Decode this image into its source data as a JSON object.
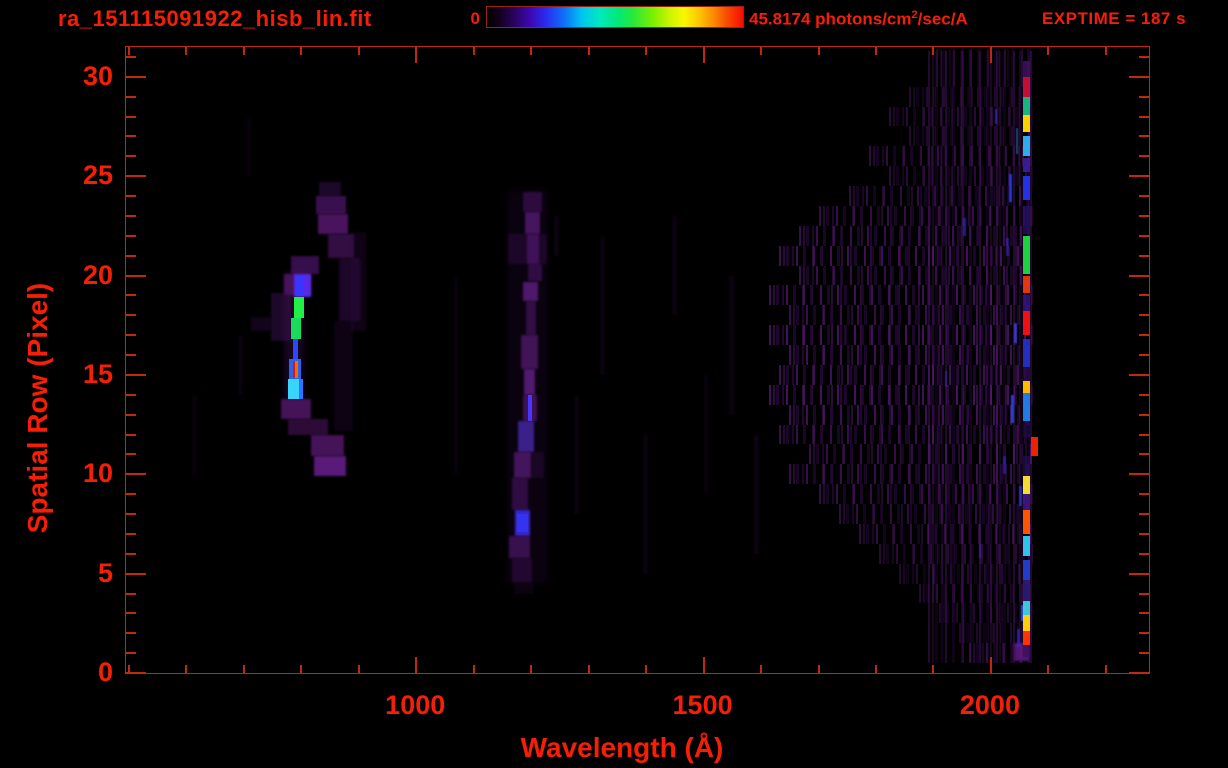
{
  "header": {
    "title": "ra_151115091922_hisb_lin.fit",
    "colorbar_min_label": "0",
    "colorbar_max_prefix": "45.8174 photons/cm",
    "colorbar_max_sup": "2",
    "colorbar_max_suffix": "/sec/A",
    "exptime_label": "EXPTIME = 187 s"
  },
  "colors": {
    "background": "#000000",
    "annotation_red": "#f71e08",
    "axis_red": "#c1290f",
    "noise_purple": "#6e1e9e"
  },
  "chart_data": {
    "type": "heatmap",
    "title": "ra_151115091922_hisb_lin.fit",
    "xlabel": "Wavelength (Å)",
    "ylabel": "Spatial Row (Pixel)",
    "xlim": [
      495,
      2275
    ],
    "ylim": [
      0,
      31.5
    ],
    "x_major_ticks": [
      1000,
      1500,
      2000
    ],
    "x_minor_range": [
      500,
      2200
    ],
    "x_minor_step": 100,
    "y_major_ticks": [
      0,
      5,
      10,
      15,
      20,
      25,
      30
    ],
    "y_minor_range": [
      0,
      31
    ],
    "y_minor_step": 1,
    "colorbar": {
      "min": 0,
      "max": 45.8174,
      "units": "photons/cm²/sec/A"
    },
    "exptime_s": 187,
    "features": {
      "blobs": [
        [
          831,
          869,
          24.0,
          24.7,
          "#3c1054",
          0.5,
          1
        ],
        [
          826,
          878,
          23.1,
          24.0,
          "#45125f",
          0.85,
          1
        ],
        [
          829,
          881,
          22.1,
          23.1,
          "#521768",
          0.9,
          1
        ],
        [
          782,
          831,
          20.1,
          21.0,
          "#45125f",
          0.8,
          1
        ],
        [
          770,
          817,
          19.0,
          20.1,
          "#521768",
          0.85,
          1
        ],
        [
          747,
          782,
          16.7,
          19.1,
          "#3c1054",
          0.5,
          1
        ],
        [
          712,
          747,
          17.2,
          17.9,
          "#360e4c",
          0.35,
          1
        ],
        [
          770,
          805,
          13.7,
          20.2,
          "#4a1468",
          0.3,
          3
        ],
        [
          765,
          817,
          12.8,
          13.8,
          "#521768",
          0.85,
          1
        ],
        [
          777,
          846,
          12.0,
          12.8,
          "#40114f",
          0.7,
          1
        ],
        [
          817,
          874,
          10.9,
          12.0,
          "#521768",
          0.85,
          1
        ],
        [
          822,
          878,
          9.9,
          10.9,
          "#5e1c80",
          0.95,
          1
        ],
        [
          846,
          891,
          20.9,
          22.1,
          "#481460",
          0.7,
          1
        ],
        [
          865,
          903,
          17.7,
          20.9,
          "#390f50",
          0.5,
          1
        ],
        [
          886,
          912,
          17.2,
          22.2,
          "#320d46",
          0.3,
          1
        ],
        [
          857,
          890,
          12.2,
          17.7,
          "#320d46",
          0.28,
          1
        ],
        [
          2040,
          2066,
          0.6,
          1.5,
          "#5a1b7a",
          0.9,
          1
        ]
      ],
      "bright_segments": [
        [
          787,
          817,
          18.9,
          20.1,
          "#5b2bf2",
          0.95,
          1
        ],
        [
          791,
          805,
          18.95,
          20.0,
          "#3a34ff",
          1,
          0
        ],
        [
          787,
          805,
          17.85,
          18.9,
          "#20ef48",
          1,
          0
        ],
        [
          782,
          800,
          16.8,
          17.85,
          "#18dc5a",
          1,
          0
        ],
        [
          785,
          794,
          15.8,
          16.8,
          "#2f46ff",
          1,
          0
        ],
        [
          779,
          800,
          14.8,
          15.8,
          "#2a62e8",
          1,
          0
        ],
        [
          789,
          795,
          14.85,
          15.7,
          "#ff6a00",
          1,
          0
        ],
        [
          786,
          789,
          14.85,
          15.7,
          "#e01414",
          1,
          0
        ],
        [
          777,
          803,
          13.8,
          14.8,
          "#38d6ff",
          1,
          0
        ],
        [
          796,
          803,
          13.8,
          14.8,
          "#2b6bff",
          0.9,
          0
        ]
      ],
      "stripe_blocks": [
        [
          1158,
          1230,
          4.5,
          24.3,
          "#45125e",
          0.15,
          3
        ],
        [
          1186,
          1218,
          23.2,
          24.2,
          "#4a1468",
          0.55,
          1
        ],
        [
          1190,
          1216,
          22.1,
          23.2,
          "#541a72",
          0.8,
          1
        ],
        [
          1160,
          1228,
          20.6,
          22.1,
          "#41125c",
          0.35,
          1
        ],
        [
          1193,
          1214,
          20.6,
          22.1,
          "#4e1669",
          0.7,
          1
        ],
        [
          1194,
          1218,
          19.7,
          20.6,
          "#4a1468",
          0.6,
          1
        ],
        [
          1186,
          1212,
          18.7,
          19.7,
          "#5a1d7c",
          0.85,
          1
        ],
        [
          1191,
          1209,
          17.0,
          18.7,
          "#4e166b",
          0.6,
          1
        ],
        [
          1182,
          1212,
          15.3,
          17.0,
          "#521a70",
          0.75,
          1
        ],
        [
          1187,
          1207,
          14.0,
          15.3,
          "#5e1e80",
          0.85,
          1
        ],
        [
          1185,
          1210,
          12.7,
          14.0,
          "#521a70",
          0.7,
          1
        ],
        [
          1195,
          1202,
          12.7,
          14.0,
          "#4636ff",
          1,
          0
        ],
        [
          1177,
          1205,
          11.1,
          12.7,
          "#4c2bb4",
          0.75,
          1
        ],
        [
          1170,
          1200,
          9.8,
          11.1,
          "#521a70",
          0.8,
          1
        ],
        [
          1200,
          1222,
          9.8,
          11.1,
          "#41125c",
          0.3,
          1
        ],
        [
          1167,
          1195,
          8.2,
          9.8,
          "#481466",
          0.6,
          1
        ],
        [
          1172,
          1198,
          6.9,
          8.2,
          "#3c2ce0",
          0.9,
          1
        ],
        [
          1176,
          1194,
          7.1,
          8.0,
          "#3434f0",
          1,
          0
        ],
        [
          1162,
          1198,
          5.8,
          6.9,
          "#4c176a",
          0.7,
          1
        ],
        [
          1166,
          1202,
          4.6,
          5.8,
          "#40115a",
          0.45,
          1
        ],
        [
          1170,
          1205,
          4.0,
          4.6,
          "#3a0f52",
          0.2,
          1
        ]
      ],
      "column_x": [
        2056,
        2068
      ],
      "column_segments": [
        [
          30.0,
          30.8,
          "#451260",
          0.8,
          0
        ],
        [
          29.0,
          30.0,
          "#cc1036",
          0.95,
          0
        ],
        [
          28.1,
          29.0,
          "#19c88c",
          0.9,
          0
        ],
        [
          27.2,
          28.1,
          "#ffd000",
          1,
          0
        ],
        [
          26.0,
          27.0,
          "#30b4f8",
          0.95,
          0
        ],
        [
          25.2,
          25.9,
          "#4020a8",
          0.85,
          0
        ],
        [
          23.8,
          25.0,
          "#2336ee",
          0.95,
          0
        ],
        [
          22.1,
          23.5,
          "#241064",
          0.8,
          0
        ],
        [
          20.1,
          22.0,
          "#1fd13f",
          1,
          0
        ],
        [
          19.1,
          20.0,
          "#ee3911",
          0.95,
          0
        ],
        [
          18.2,
          19.0,
          "#33147e",
          0.85,
          0
        ],
        [
          17.0,
          18.2,
          "#ee1111",
          1,
          0
        ],
        [
          15.4,
          16.8,
          "#2333cc",
          0.9,
          0
        ],
        [
          14.7,
          15.4,
          "#2c0d50",
          0.7,
          0
        ],
        [
          14.1,
          14.7,
          "#ffba00",
          1,
          0
        ],
        [
          12.7,
          14.1,
          "#2288f8",
          0.9,
          0
        ],
        [
          11.9,
          12.7,
          "#1e0b44",
          0.7,
          0
        ],
        [
          10.9,
          11.9,
          "#ee2200",
          1,
          14
        ],
        [
          9.9,
          10.9,
          "#201056",
          0.7,
          0
        ],
        [
          9.0,
          9.9,
          "#ffe833",
          0.95,
          0
        ],
        [
          8.2,
          9.0,
          "#44188c",
          0.8,
          0
        ],
        [
          7.0,
          8.2,
          "#ff5500",
          1,
          0
        ],
        [
          5.9,
          6.9,
          "#33ccf8",
          0.95,
          0
        ],
        [
          4.7,
          5.7,
          "#2244dd",
          0.9,
          0
        ],
        [
          3.6,
          4.7,
          "#302084",
          0.8,
          0
        ],
        [
          2.9,
          3.6,
          "#44dcee",
          0.9,
          0
        ],
        [
          2.1,
          2.9,
          "#ffcc11",
          1,
          0
        ],
        [
          1.4,
          2.1,
          "#ff3300",
          1,
          0
        ],
        [
          0.8,
          1.4,
          "#3a1060",
          0.8,
          0
        ]
      ],
      "strands": [
        [
          2031,
          23.7,
          25.1,
          "#2d3cf0",
          0.85,
          3
        ],
        [
          1951,
          22.0,
          22.9,
          "#3c2ce0",
          0.6,
          3
        ],
        [
          2026,
          21.0,
          21.9,
          "#4c2ce0",
          0.55,
          3
        ],
        [
          2040,
          16.6,
          17.6,
          "#3c44f0",
          0.75,
          3
        ],
        [
          2035,
          12.6,
          14.0,
          "#2d50f8",
          0.8,
          3
        ],
        [
          2021,
          10.0,
          10.9,
          "#3c2ce0",
          0.55,
          3
        ],
        [
          2049,
          8.4,
          9.4,
          "#3444e8",
          0.65,
          3
        ],
        [
          2052,
          2.6,
          3.4,
          "#2d64f8",
          0.8,
          3
        ],
        [
          2046,
          1.3,
          2.2,
          "#3c2ce0",
          0.65,
          3
        ],
        [
          1920,
          14.4,
          15.2,
          "#5a2bd8",
          0.5,
          2
        ],
        [
          1979,
          5.8,
          6.5,
          "#4c2ce0",
          0.45,
          2
        ],
        [
          2007,
          27.6,
          28.4,
          "#3c50f0",
          0.55,
          2
        ],
        [
          2044,
          26.1,
          27.4,
          "#2a9cd8",
          0.5,
          2
        ]
      ],
      "noise_rows": [
        [
          29.5,
          31.4,
          1905,
          2074,
          0.3
        ],
        [
          28.5,
          29.5,
          1858,
          2074,
          0.35
        ],
        [
          27.5,
          28.5,
          1823,
          2074,
          0.4
        ],
        [
          26.5,
          27.5,
          1858,
          2074,
          0.35
        ],
        [
          25.5,
          26.5,
          1788,
          2074,
          0.45
        ],
        [
          24.5,
          25.5,
          1823,
          2074,
          0.4
        ],
        [
          23.5,
          24.5,
          1753,
          2074,
          0.45
        ],
        [
          22.5,
          23.5,
          1700,
          2074,
          0.5
        ],
        [
          21.5,
          22.5,
          1666,
          2074,
          0.55
        ],
        [
          20.5,
          21.5,
          1631,
          2074,
          0.6
        ],
        [
          19.5,
          20.5,
          1666,
          2074,
          0.55
        ],
        [
          18.5,
          19.5,
          1614,
          2074,
          0.6
        ],
        [
          17.5,
          18.5,
          1648,
          2074,
          0.55
        ],
        [
          16.5,
          17.5,
          1614,
          2074,
          0.65
        ],
        [
          15.5,
          16.5,
          1648,
          2074,
          0.6
        ],
        [
          14.5,
          15.5,
          1631,
          2074,
          0.6
        ],
        [
          13.5,
          14.5,
          1614,
          2074,
          0.65
        ],
        [
          12.5,
          13.5,
          1648,
          2074,
          0.6
        ],
        [
          11.5,
          12.5,
          1631,
          2074,
          0.55
        ],
        [
          10.5,
          11.5,
          1683,
          2074,
          0.5
        ],
        [
          9.5,
          10.5,
          1648,
          2074,
          0.55
        ],
        [
          8.5,
          9.5,
          1700,
          2074,
          0.5
        ],
        [
          7.5,
          8.5,
          1735,
          2074,
          0.45
        ],
        [
          6.5,
          7.5,
          1770,
          2074,
          0.45
        ],
        [
          5.5,
          6.5,
          1805,
          2074,
          0.4
        ],
        [
          4.5,
          5.5,
          1840,
          2074,
          0.35
        ],
        [
          3.5,
          4.5,
          1875,
          2074,
          0.35
        ],
        [
          2.5,
          3.5,
          1910,
          2074,
          0.3
        ],
        [
          1.5,
          2.5,
          1945,
          2074,
          0.3
        ],
        [
          0.5,
          1.5,
          1962,
          2068,
          0.45
        ],
        [
          0.5,
          31.3,
          1890,
          2072,
          0.35
        ]
      ],
      "wisps": [
        [
          690,
          14,
          17,
          0.12
        ],
        [
          705,
          25,
          28,
          0.1
        ],
        [
          610,
          10,
          14,
          0.1
        ],
        [
          1065,
          10,
          20,
          0.1
        ],
        [
          1240,
          21,
          23,
          0.15
        ],
        [
          1275,
          8,
          14,
          0.12
        ],
        [
          1320,
          15,
          22,
          0.12
        ],
        [
          1395,
          5,
          12,
          0.12
        ],
        [
          1445,
          18,
          23,
          0.12
        ],
        [
          1500,
          9,
          15,
          0.1
        ],
        [
          1545,
          13,
          20,
          0.15
        ],
        [
          1588,
          6,
          12,
          0.15
        ]
      ]
    }
  }
}
